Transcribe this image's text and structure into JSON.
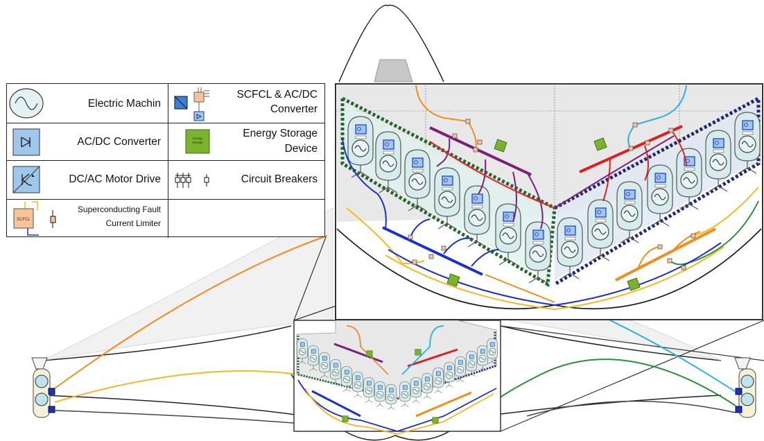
{
  "legend": {
    "electric_machine": "Electric Machin",
    "scfcl_converter_line1": "SCFCL & AC/DC",
    "scfcl_converter_line2": "Converter",
    "acdc_converter": "AC/DC Converter",
    "energy_storage_line1": "Energy Storage",
    "energy_storage_line2": "Device",
    "dcac_motor_drive": "DC/AC Motor Drive",
    "circuit_breakers": "Circuit Breakers",
    "scfcl_line1": "Superconducting Fault",
    "scfcl_line2": "Current Limiter",
    "scfcl_icon_text": "SCFCL",
    "energy_icon_text1": "Energy",
    "energy_icon_text2": "Storage"
  },
  "colors": {
    "bus_port": "#7b1f7a",
    "bus_starboard": "#e02020",
    "bus_blue": "#1a2fd0",
    "bus_orange": "#f28c1a",
    "bus_yellow": "#f5b820",
    "cable_cyan": "#2ab0e8",
    "cable_green": "#2e8b3a",
    "dotted_green": "#1f6b2a",
    "dotted_navy": "#1f2a7a",
    "converter_fill": "#9fc7ec",
    "storage_fill": "#7bb32e",
    "scfcl_fill": "#f7c49a",
    "machine_fill": "#d6ebeb"
  }
}
